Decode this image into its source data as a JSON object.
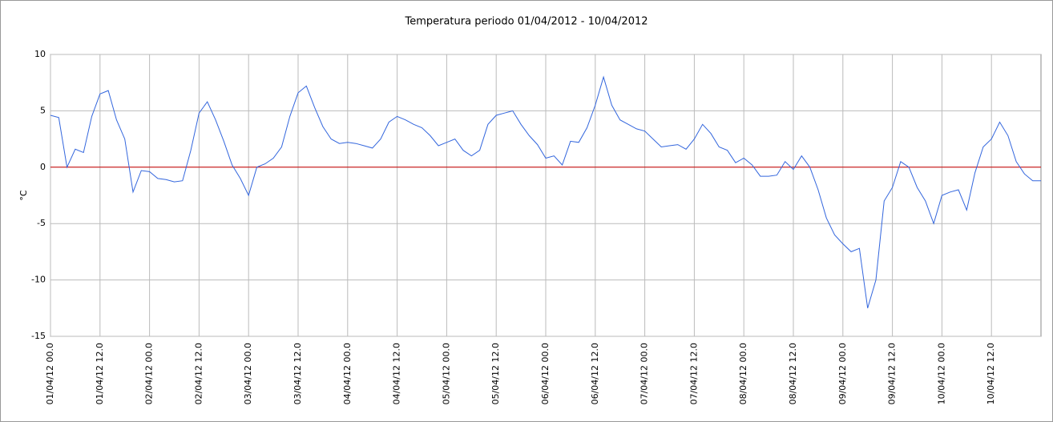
{
  "chart_data": {
    "type": "line",
    "title": "Temperatura periodo 01/04/2012 - 10/04/2012",
    "y_label": "°C",
    "categories": [
      "01/04/12 00.0",
      null,
      null,
      null,
      null,
      null,
      "01/04/12 12.0",
      null,
      null,
      null,
      null,
      null,
      "02/04/12 00.0",
      null,
      null,
      null,
      null,
      null,
      "02/04/12 12.0",
      null,
      null,
      null,
      null,
      null,
      "03/04/12 00.0",
      null,
      null,
      null,
      null,
      null,
      "03/04/12 12.0",
      null,
      null,
      null,
      null,
      null,
      "04/04/12 00.0",
      null,
      null,
      null,
      null,
      null,
      "04/04/12 12.0",
      null,
      null,
      null,
      null,
      null,
      "05/04/12 00.0",
      null,
      null,
      null,
      null,
      null,
      "05/04/12 12.0",
      null,
      null,
      null,
      null,
      null,
      "06/04/12 00.0",
      null,
      null,
      null,
      null,
      null,
      "06/04/12 12.0",
      null,
      null,
      null,
      null,
      null,
      "07/04/12 00.0",
      null,
      null,
      null,
      null,
      null,
      "07/04/12 12.0",
      null,
      null,
      null,
      null,
      null,
      "08/04/12 00.0",
      null,
      null,
      null,
      null,
      null,
      "08/04/12 12.0",
      null,
      null,
      null,
      null,
      null,
      "09/04/12 00.0",
      null,
      null,
      null,
      null,
      null,
      "09/04/12 12.0",
      null,
      null,
      null,
      null,
      null,
      "10/04/12 00.0",
      null,
      null,
      null,
      null,
      null,
      "10/04/12 12.0",
      null,
      null,
      null,
      null,
      null,
      null
    ],
    "series": [
      {
        "name": "Temperatura",
        "color": "#3366dd",
        "values": [
          4.6,
          4.4,
          0.0,
          1.6,
          1.3,
          4.5,
          6.5,
          6.8,
          4.2,
          2.5,
          -2.2,
          -0.3,
          -0.4,
          -1.0,
          -1.1,
          -1.3,
          -1.2,
          1.5,
          4.8,
          5.8,
          4.2,
          2.3,
          0.2,
          -1.0,
          -2.5,
          0.0,
          0.3,
          0.8,
          1.8,
          4.5,
          6.6,
          7.2,
          5.3,
          3.6,
          2.5,
          2.1,
          2.2,
          2.1,
          1.9,
          1.7,
          2.5,
          4.0,
          4.5,
          4.2,
          3.8,
          3.5,
          2.8,
          1.9,
          2.2,
          2.5,
          1.5,
          1.0,
          1.5,
          3.8,
          4.6,
          4.8,
          5.0,
          3.8,
          2.8,
          2.0,
          0.8,
          1.0,
          0.2,
          2.3,
          2.2,
          3.5,
          5.5,
          8.0,
          5.5,
          4.2,
          3.8,
          3.4,
          3.2,
          2.5,
          1.8,
          1.9,
          2.0,
          1.6,
          2.5,
          3.8,
          3.0,
          1.8,
          1.5,
          0.4,
          0.8,
          0.2,
          -0.8,
          -0.8,
          -0.7,
          0.5,
          -0.2,
          1.0,
          0.0,
          -2.0,
          -4.5,
          -6.0,
          -6.8,
          -7.5,
          -7.2,
          -12.5,
          -10.0,
          -3.0,
          -1.8,
          0.5,
          0.0,
          -1.8,
          -3.0,
          -5.0,
          -2.5,
          -2.2,
          -2.0,
          -3.8,
          -0.5,
          1.8,
          2.5,
          4.0,
          2.8,
          0.5,
          -0.6,
          -1.2,
          -1.2
        ]
      }
    ],
    "ylim": [
      -15,
      10
    ],
    "yticks": [
      10,
      5,
      0,
      -5,
      -10,
      -15
    ],
    "grid": true,
    "reference_line": {
      "value": 0,
      "color": "#cc0000"
    }
  }
}
